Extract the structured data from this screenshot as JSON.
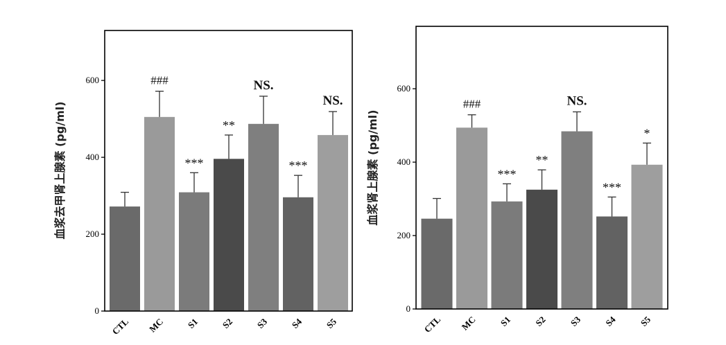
{
  "chart_data": [
    {
      "type": "bar",
      "ylabel": "血浆去甲肾上腺素 (pg/ml)",
      "categories": [
        "CTL",
        "MC",
        "S1",
        "S2",
        "S3",
        "S4",
        "S5"
      ],
      "values": [
        272,
        505,
        309,
        396,
        487,
        296,
        458
      ],
      "errors": [
        37,
        67,
        51,
        62,
        72,
        57,
        61
      ],
      "annotations": [
        "",
        "###",
        "***",
        "**",
        "NS.",
        "***",
        "NS."
      ],
      "bar_colors": [
        "#6a6a6a",
        "#9a9a9a",
        "#7b7b7b",
        "#4a4a4a",
        "#7f7f7f",
        "#626262",
        "#9e9e9e"
      ],
      "yticks": [
        0,
        200,
        400,
        600
      ],
      "ylim": [
        0,
        730
      ]
    },
    {
      "type": "bar",
      "ylabel": "血浆肾上腺素 (pg/ml)",
      "categories": [
        "CTL",
        "MC",
        "S1",
        "S2",
        "S3",
        "S4",
        "S5"
      ],
      "values": [
        246,
        494,
        293,
        325,
        484,
        252,
        393
      ],
      "errors": [
        55,
        35,
        48,
        54,
        53,
        53,
        59
      ],
      "annotations": [
        "",
        "###",
        "***",
        "**",
        "NS.",
        "***",
        "*"
      ],
      "bar_colors": [
        "#6a6a6a",
        "#9a9a9a",
        "#7b7b7b",
        "#4a4a4a",
        "#7f7f7f",
        "#626262",
        "#9e9e9e"
      ],
      "yticks": [
        0,
        200,
        400,
        600
      ],
      "ylim": [
        0,
        770
      ]
    }
  ]
}
